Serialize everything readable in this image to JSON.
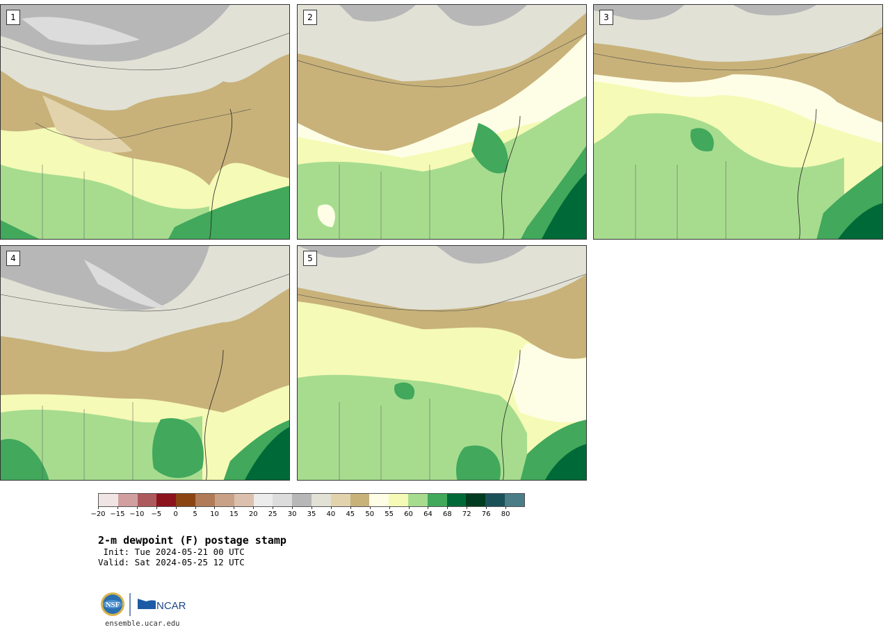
{
  "panels": [
    {
      "label": "1",
      "scheme": "dry"
    },
    {
      "label": "2",
      "scheme": "moist"
    },
    {
      "label": "3",
      "scheme": "moist"
    },
    {
      "label": "4",
      "scheme": "mixed"
    },
    {
      "label": "5",
      "scheme": "moist-light"
    }
  ],
  "colorbar": {
    "colors": [
      "#f1e4e4",
      "#d19fa0",
      "#ad5a5e",
      "#8b141d",
      "#8b4513",
      "#b07b56",
      "#c9a187",
      "#dcc0ae",
      "#ececec",
      "#dcdcdc",
      "#b7b7b7",
      "#e1e1d6",
      "#e2d3ad",
      "#c8b27a",
      "#fefee6",
      "#f5fab6",
      "#a7dc8f",
      "#41a85c",
      "#006938",
      "#003b22",
      "#1c5059",
      "#4b7d86"
    ],
    "tick_labels": [
      "−20",
      "−15",
      "−10",
      "−5",
      "0",
      "5",
      "10",
      "15",
      "20",
      "25",
      "30",
      "35",
      "40",
      "45",
      "50",
      "55",
      "60",
      "64",
      "68",
      "72",
      "76",
      "80"
    ]
  },
  "title": "2-m dewpoint (F) postage stamp",
  "init": " Init: Tue 2024-05-21 00 UTC",
  "valid": "Valid: Sat 2024-05-25 12 UTC",
  "logos": {
    "nsf": "NSF",
    "ncar": "NCAR"
  },
  "footer_url": "ensemble.ucar.edu"
}
